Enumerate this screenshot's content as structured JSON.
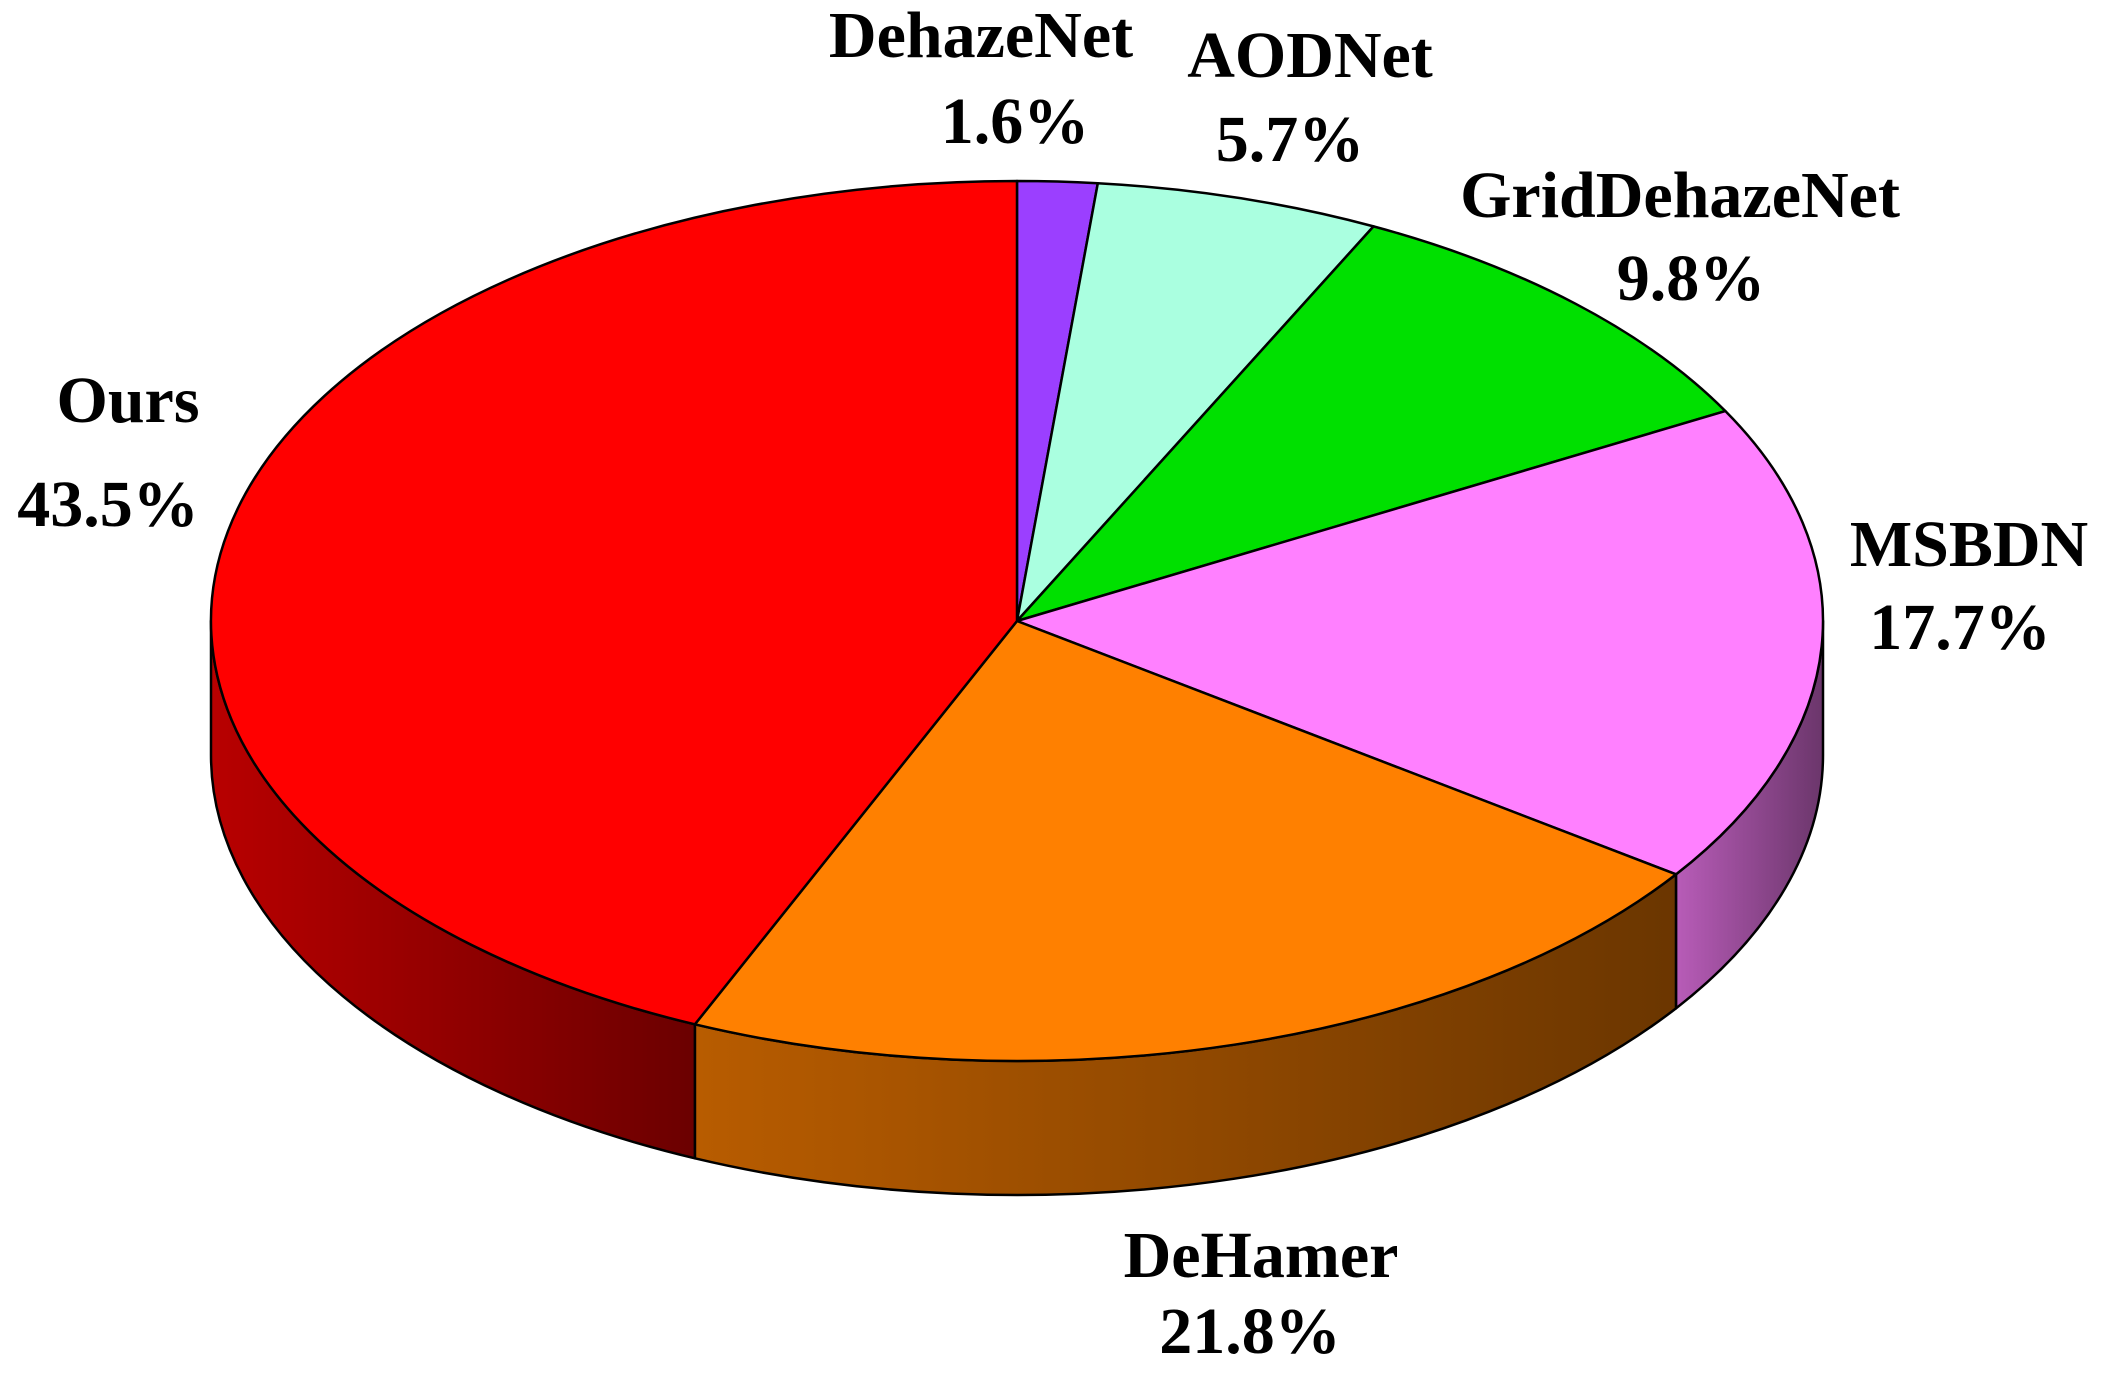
{
  "chart_data": {
    "type": "pie3d",
    "categories": [
      "DehazeNet",
      "AODNet",
      "GridDehazeNet",
      "MSBDN",
      "DeHamer",
      "Ours"
    ],
    "values": [
      1.6,
      5.7,
      9.8,
      17.7,
      21.8,
      43.5
    ],
    "value_labels": [
      "1.6%",
      "5.7%",
      "9.8%",
      "17.7%",
      "21.8%",
      "43.5%"
    ],
    "colors": [
      "#9b3fff",
      "#aaffe0",
      "#00e000",
      "#ff80ff",
      "#ff8000",
      "#ff0000"
    ]
  }
}
